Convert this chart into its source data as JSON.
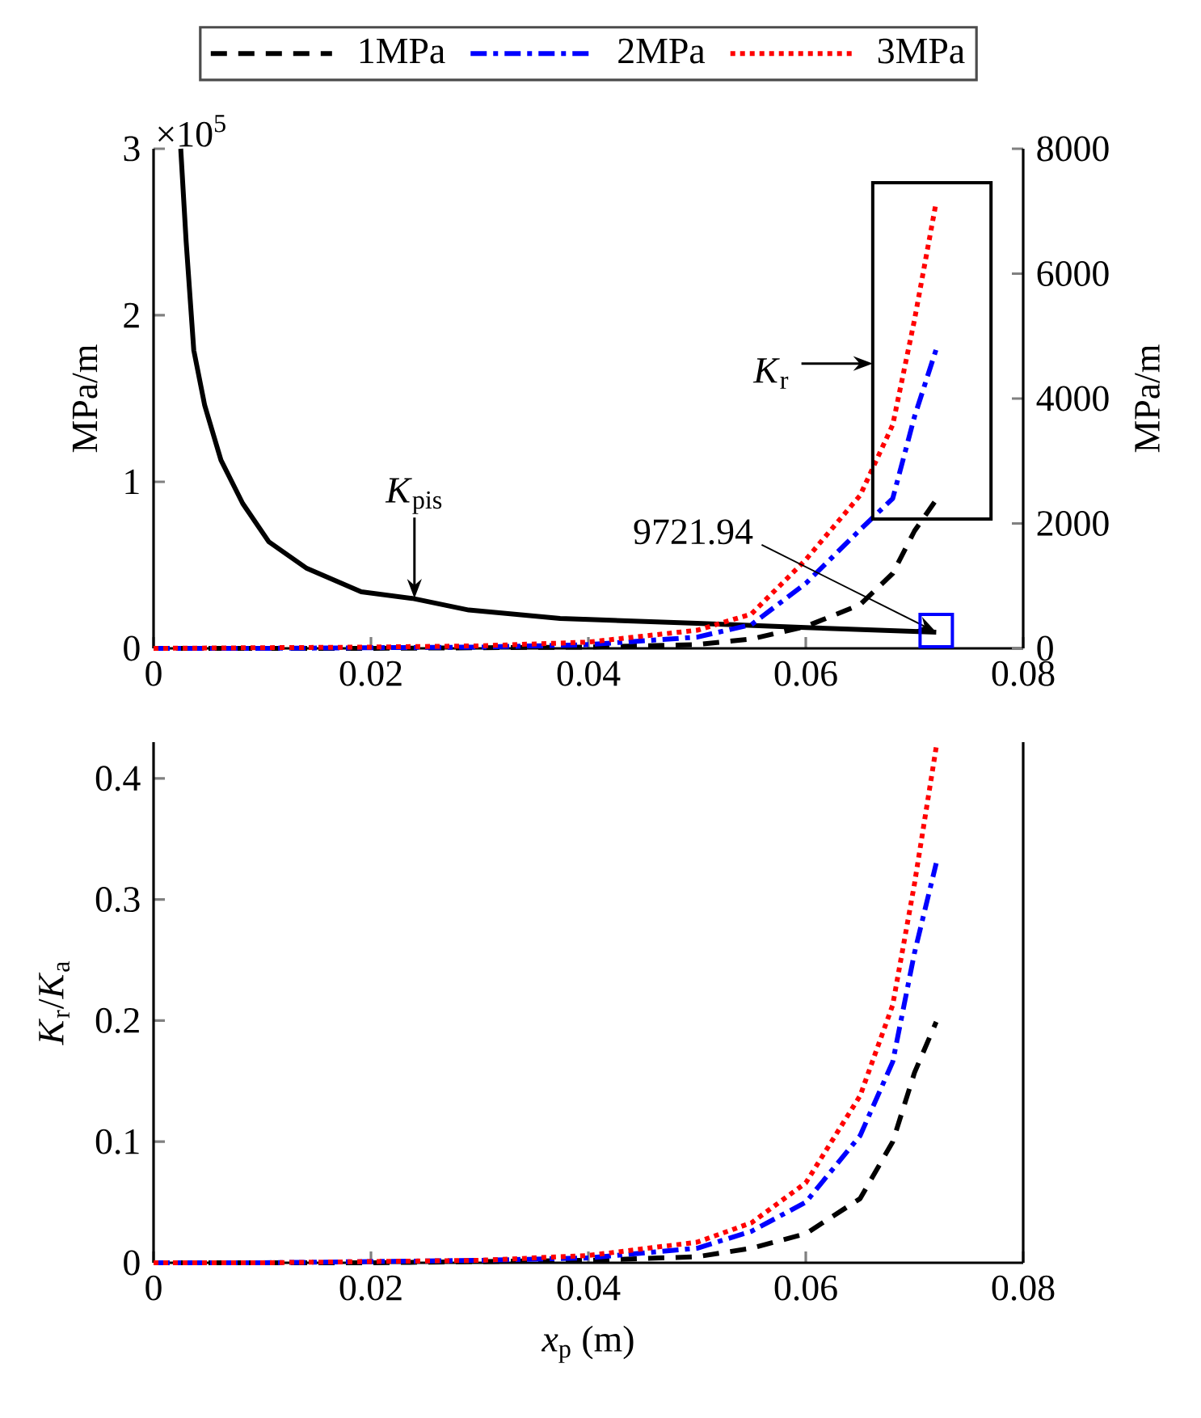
{
  "chart_data": [
    {
      "type": "line",
      "xlim": [
        0,
        0.08
      ],
      "xticks": [
        0,
        0.02,
        0.04,
        0.06,
        0.08
      ],
      "ylim": [
        0,
        3
      ],
      "yticks": [
        0,
        1,
        2,
        3
      ],
      "ylabel": "MPa/m",
      "y2label": "MPa/m",
      "y2lim": [
        0,
        8000
      ],
      "y2ticks": [
        0,
        2000,
        4000,
        6000,
        8000
      ],
      "legend": "top",
      "annotations": [
        "×10$^{5}$",
        {
          "text": "*K*$_{pis}$",
          "x": 0.024,
          "y": 0.3
        },
        {
          "text": "9721.94",
          "x": 0.072,
          "y": 0.0972194
        },
        "*K*$_{r}$"
      ],
      "series": [
        {
          "color": "#000000",
          "line_style": "solid",
          "x": [
            0.0025,
            0.003,
            0.0037,
            0.0047,
            0.0062,
            0.0082,
            0.0106,
            0.0141,
            0.0191,
            0.0238,
            0.029,
            0.0374,
            0.05,
            0.06,
            0.072
          ],
          "values": [
            3,
            2.44,
            1.79,
            1.46,
            1.13,
            0.87,
            0.64,
            0.48,
            0.34,
            0.3,
            0.23,
            0.18,
            0.15,
            0.125,
            0.0972194
          ]
        },
        {
          "name": "1MPa",
          "color": "#000000",
          "line_style": "dashed",
          "axis": "y2",
          "x": [
            0,
            0.01,
            0.02,
            0.03,
            0.04,
            0.05,
            0.055,
            0.06,
            0.065,
            0.068,
            0.07,
            0.072
          ],
          "values": [
            0,
            0,
            0,
            10,
            20,
            60,
            150,
            350,
            700,
            1200,
            1880,
            2380
          ]
        },
        {
          "name": "2MPa",
          "color": "#0000ff",
          "line_style": "dashdot",
          "axis": "y2",
          "x": [
            0,
            0.01,
            0.02,
            0.03,
            0.04,
            0.05,
            0.055,
            0.06,
            0.065,
            0.068,
            0.07,
            0.072
          ],
          "values": [
            0,
            0,
            10,
            20,
            60,
            180,
            380,
            1040,
            1900,
            2400,
            3710,
            4790
          ]
        },
        {
          "name": "3MPa",
          "color": "#ff0000",
          "line_style": "dotted",
          "axis": "y2",
          "x": [
            0,
            0.01,
            0.02,
            0.03,
            0.04,
            0.05,
            0.055,
            0.06,
            0.065,
            0.068,
            0.07,
            0.072
          ],
          "values": [
            0,
            10,
            20,
            40,
            100,
            290,
            550,
            1420,
            2450,
            3580,
            5260,
            7150
          ]
        }
      ]
    },
    {
      "type": "line",
      "xlim": [
        0,
        0.08
      ],
      "xticks": [
        0,
        0.02,
        0.04,
        0.06,
        0.08
      ],
      "ylim": [
        0,
        0.43
      ],
      "yticks": [
        0,
        0.1,
        0.2,
        0.3,
        0.4
      ],
      "xlabel": "*x*$_{p}$ (m)",
      "ylabel": "*K*$_{r}$/*K*$_{a}$",
      "series": [
        {
          "color": "#000000",
          "line_style": "dashed",
          "x": [
            0,
            0.01,
            0.02,
            0.03,
            0.04,
            0.05,
            0.055,
            0.06,
            0.065,
            0.068,
            0.07,
            0.072
          ],
          "values": [
            0,
            0,
            0,
            0.001,
            0.002,
            0.005,
            0.012,
            0.024,
            0.053,
            0.1,
            0.157,
            0.199
          ]
        },
        {
          "color": "#0000ff",
          "line_style": "dashdot",
          "x": [
            0,
            0.01,
            0.02,
            0.03,
            0.04,
            0.05,
            0.055,
            0.06,
            0.065,
            0.068,
            0.07,
            0.072
          ],
          "values": [
            0,
            0,
            0.001,
            0.002,
            0.004,
            0.012,
            0.026,
            0.05,
            0.105,
            0.166,
            0.256,
            0.33
          ]
        },
        {
          "color": "#ff0000",
          "line_style": "dotted",
          "x": [
            0,
            0.01,
            0.02,
            0.03,
            0.04,
            0.05,
            0.055,
            0.06,
            0.065,
            0.068,
            0.07,
            0.072
          ],
          "values": [
            0,
            0,
            0.001,
            0.002,
            0.006,
            0.017,
            0.033,
            0.066,
            0.138,
            0.213,
            0.313,
            0.426
          ]
        }
      ]
    }
  ]
}
